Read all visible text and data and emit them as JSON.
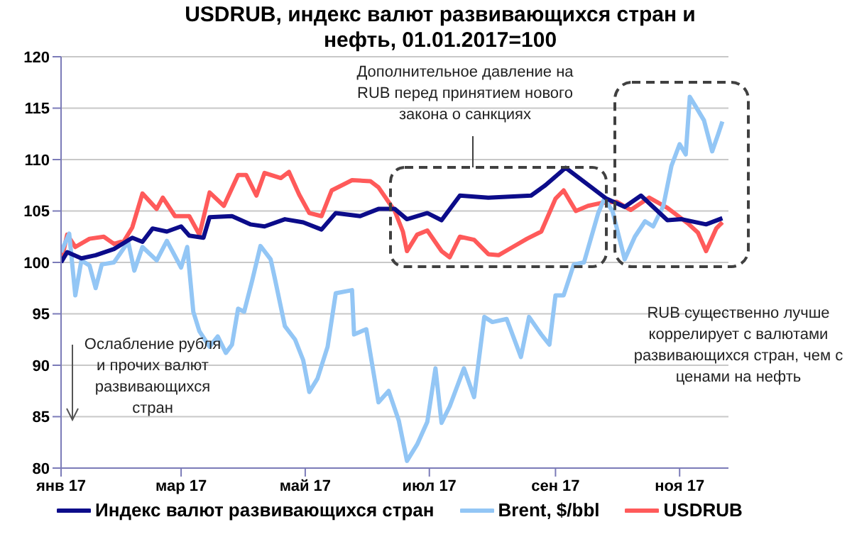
{
  "chart_data": {
    "type": "line",
    "title": "USDRUB, индекс валют развивающихся стран и нефть, 01.01.2017=100",
    "xlim": [
      "2017-01-01",
      "2017-11-25"
    ],
    "xticks": [
      {
        "value": "2017-01-01",
        "label": "янв 17"
      },
      {
        "value": "2017-03-01",
        "label": "мар 17"
      },
      {
        "value": "2017-05-01",
        "label": "май 17"
      },
      {
        "value": "2017-07-01",
        "label": "июл 17"
      },
      {
        "value": "2017-09-01",
        "label": "сен 17"
      },
      {
        "value": "2017-11-01",
        "label": "ноя 17"
      }
    ],
    "ylim": [
      80,
      120
    ],
    "yticks": [
      80,
      85,
      90,
      95,
      100,
      105,
      110,
      115,
      120
    ],
    "grid": "y",
    "legend": "bottom",
    "marker": "none",
    "line_style": "solid",
    "annotations": [
      "Дополнительное давление на RUB перед принятием нового закона о санкциях",
      "RUB существенно лучше коррелирует с валютами развивающихся стран, чем с ценами на нефть",
      "Ослабление рубля и прочих валют развивающихся стран"
    ],
    "series": [
      {
        "name": "Индекс валют развивающихся стран",
        "color": "#0c0c8a",
        "x": [
          "2017-01-01",
          "2017-01-04",
          "2017-01-11",
          "2017-01-18",
          "2017-01-27",
          "2017-02-05",
          "2017-02-10",
          "2017-02-15",
          "2017-02-22",
          "2017-03-01",
          "2017-03-05",
          "2017-03-12",
          "2017-03-15",
          "2017-03-26",
          "2017-04-04",
          "2017-04-11",
          "2017-04-21",
          "2017-04-30",
          "2017-05-09",
          "2017-05-16",
          "2017-05-28",
          "2017-06-06",
          "2017-06-14",
          "2017-06-20",
          "2017-06-30",
          "2017-07-07",
          "2017-07-16",
          "2017-07-30",
          "2017-08-20",
          "2017-08-27",
          "2017-09-06",
          "2017-09-26",
          "2017-10-05",
          "2017-10-13",
          "2017-10-26",
          "2017-11-02",
          "2017-11-14",
          "2017-11-22"
        ],
        "values": [
          100,
          101,
          100.4,
          100.7,
          101.3,
          102.4,
          102,
          103.3,
          103,
          103.5,
          102.6,
          102.4,
          104.4,
          104.5,
          103.7,
          103.5,
          104.2,
          103.9,
          103.2,
          104.8,
          104.5,
          105.2,
          105.2,
          104.2,
          104.8,
          104.1,
          106.5,
          106.3,
          106.5,
          107.5,
          109.2,
          106.2,
          105.4,
          106.5,
          104.1,
          104.2,
          103.7,
          104.3
        ]
      },
      {
        "name": "Brent, $/bbl",
        "color": "#93c6f5",
        "x": [
          "2017-01-01",
          "2017-01-05",
          "2017-01-08",
          "2017-01-11",
          "2017-01-15",
          "2017-01-18",
          "2017-01-21",
          "2017-01-27",
          "2017-02-03",
          "2017-02-06",
          "2017-02-10",
          "2017-02-17",
          "2017-02-22",
          "2017-03-01",
          "2017-03-04",
          "2017-03-07",
          "2017-03-10",
          "2017-03-15",
          "2017-03-19",
          "2017-03-23",
          "2017-03-26",
          "2017-03-29",
          "2017-04-01",
          "2017-04-05",
          "2017-04-09",
          "2017-04-14",
          "2017-04-16",
          "2017-04-21",
          "2017-04-26",
          "2017-04-30",
          "2017-05-03",
          "2017-05-07",
          "2017-05-12",
          "2017-05-16",
          "2017-05-24",
          "2017-05-25",
          "2017-05-31",
          "2017-06-06",
          "2017-06-11",
          "2017-06-16",
          "2017-06-20",
          "2017-06-25",
          "2017-06-30",
          "2017-07-04",
          "2017-07-07",
          "2017-07-11",
          "2017-07-18",
          "2017-07-23",
          "2017-07-28",
          "2017-08-01",
          "2017-08-08",
          "2017-08-15",
          "2017-08-19",
          "2017-08-25",
          "2017-08-29",
          "2017-09-01",
          "2017-09-05",
          "2017-09-10",
          "2017-09-15",
          "2017-09-22",
          "2017-09-25",
          "2017-09-29",
          "2017-10-05",
          "2017-10-10",
          "2017-10-15",
          "2017-10-19",
          "2017-10-24",
          "2017-10-28",
          "2017-11-01",
          "2017-11-04",
          "2017-11-06",
          "2017-11-10",
          "2017-11-13",
          "2017-11-17",
          "2017-11-20",
          "2017-11-22"
        ],
        "values": [
          101,
          102.8,
          96.8,
          100.2,
          99.7,
          97.5,
          99.8,
          100,
          102,
          99.2,
          101.5,
          100.2,
          102.1,
          99.5,
          101.5,
          95.2,
          93.3,
          91.8,
          92.8,
          91.2,
          92,
          95.5,
          95.2,
          98.3,
          101.6,
          100.3,
          98.5,
          93.8,
          92.5,
          90.5,
          87.4,
          88.7,
          91.8,
          97,
          97.3,
          93,
          93.5,
          86.4,
          87.5,
          84.6,
          80.7,
          82.3,
          84.5,
          89.7,
          84.4,
          86,
          89.7,
          86.9,
          94.7,
          94.2,
          94.5,
          90.8,
          94.7,
          93,
          92,
          96.8,
          96.8,
          99.8,
          100,
          104.8,
          106.2,
          105,
          100.3,
          102.5,
          104,
          103.5,
          105.5,
          109.4,
          111.5,
          110.5,
          116.1,
          114.8,
          113.8,
          110.8,
          112.5,
          113.7
        ]
      },
      {
        "name": "USDRUB",
        "color": "#ff5a5a",
        "x": [
          "2017-01-01",
          "2017-01-04",
          "2017-01-08",
          "2017-01-15",
          "2017-01-22",
          "2017-01-27",
          "2017-02-01",
          "2017-02-05",
          "2017-02-10",
          "2017-02-17",
          "2017-02-20",
          "2017-02-26",
          "2017-03-05",
          "2017-03-10",
          "2017-03-15",
          "2017-03-22",
          "2017-03-29",
          "2017-04-02",
          "2017-04-07",
          "2017-04-11",
          "2017-04-19",
          "2017-04-23",
          "2017-04-28",
          "2017-05-03",
          "2017-05-09",
          "2017-05-14",
          "2017-05-24",
          "2017-06-02",
          "2017-06-06",
          "2017-06-14",
          "2017-06-18",
          "2017-06-20",
          "2017-06-25",
          "2017-06-30",
          "2017-07-07",
          "2017-07-11",
          "2017-07-16",
          "2017-07-23",
          "2017-07-30",
          "2017-08-04",
          "2017-08-11",
          "2017-08-18",
          "2017-08-25",
          "2017-09-01",
          "2017-09-05",
          "2017-09-11",
          "2017-09-17",
          "2017-09-24",
          "2017-10-01",
          "2017-10-08",
          "2017-10-17",
          "2017-10-26",
          "2017-11-05",
          "2017-11-10",
          "2017-11-14",
          "2017-11-19",
          "2017-11-22"
        ],
        "values": [
          100,
          102.7,
          101.5,
          102.3,
          102.5,
          101.8,
          102.1,
          103.4,
          106.7,
          105.2,
          106.3,
          104.5,
          104.5,
          102.7,
          106.8,
          105.5,
          108.5,
          108.5,
          106.5,
          108.7,
          108.2,
          108.8,
          106.6,
          104.8,
          104.5,
          107,
          108,
          107.9,
          107.3,
          105,
          103,
          101.1,
          102.7,
          103.1,
          101.1,
          100.5,
          102.5,
          102.2,
          100.8,
          100.7,
          101.5,
          102.3,
          103,
          106.2,
          107,
          105,
          105.5,
          105.8,
          105.9,
          105.1,
          106.3,
          105.3,
          103.8,
          102.9,
          101.1,
          103.3,
          103.9
        ]
      }
    ]
  }
}
